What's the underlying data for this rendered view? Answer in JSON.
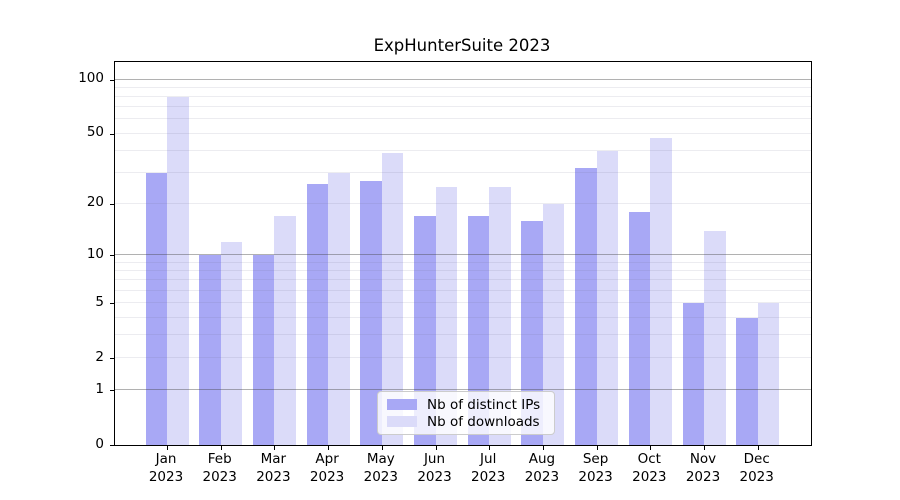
{
  "chart_data": {
    "type": "bar",
    "title": "ExpHunterSuite 2023",
    "categories": [
      "Jan",
      "Feb",
      "Mar",
      "Apr",
      "May",
      "Jun",
      "Jul",
      "Aug",
      "Sep",
      "Oct",
      "Nov",
      "Dec"
    ],
    "year_label": "2023",
    "series": [
      {
        "name": "Nb of distinct IPs",
        "color": "#a8a8f5",
        "values": [
          30,
          10,
          10,
          26,
          27,
          17,
          17,
          16,
          32,
          18,
          5,
          4
        ]
      },
      {
        "name": "Nb of downloads",
        "color": "#dbdbf9",
        "values": [
          80,
          12,
          17,
          30,
          39,
          25,
          25,
          20,
          40,
          47,
          14,
          5
        ]
      }
    ],
    "xlabel": "",
    "ylabel": "",
    "yscale": "log1p",
    "ylim": [
      0,
      125
    ],
    "yticks": [
      100,
      50,
      20,
      10,
      5,
      2,
      1,
      0
    ],
    "major_gridlines": [
      1,
      10,
      100
    ],
    "minor_gridlines": [
      2,
      3,
      4,
      5,
      6,
      7,
      8,
      9,
      20,
      30,
      40,
      50,
      60,
      70,
      80,
      90
    ],
    "grid": true,
    "legend_position": "lower center",
    "background_color": "#ffffff",
    "spine_color": "#000000"
  }
}
